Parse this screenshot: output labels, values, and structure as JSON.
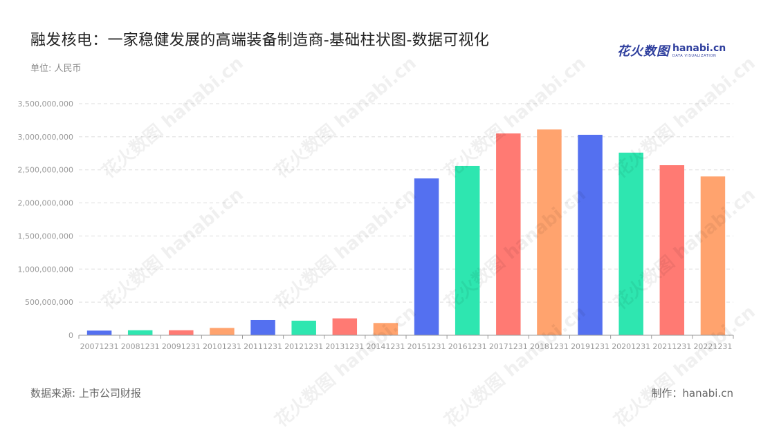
{
  "header": {
    "title": "融发核电：一家稳健发展的高端装备制造商-基础柱状图-数据可视化",
    "unit": "单位: 人民币"
  },
  "logo": {
    "cn": "花火数图",
    "en": "hanabi.cn",
    "sub": "DATA VISUALIZATION"
  },
  "footer": {
    "source": "数据来源: 上市公司财报",
    "credit": "制作：hanabi.cn"
  },
  "watermark": "花火数图 hanabi.cn",
  "chart_data": {
    "type": "bar",
    "title": "",
    "xlabel": "",
    "ylabel": "",
    "categories": [
      "20071231",
      "20081231",
      "20091231",
      "20101231",
      "20111231",
      "20121231",
      "20131231",
      "20141231",
      "20151231",
      "20161231",
      "20171231",
      "20181231",
      "20191231",
      "20201231",
      "20211231",
      "20221231"
    ],
    "values": [
      70000000,
      75000000,
      75000000,
      110000000,
      230000000,
      220000000,
      255000000,
      185000000,
      2370000000,
      2560000000,
      3050000000,
      3110000000,
      3030000000,
      2760000000,
      2570000000,
      2400000000
    ],
    "ylim": [
      0,
      3500000000
    ],
    "yticks": [
      0,
      500000000,
      1000000000,
      1500000000,
      2000000000,
      2500000000,
      3000000000,
      3500000000
    ],
    "ytick_labels": [
      "0",
      "500,000,000",
      "1,000,000,000",
      "1,500,000,000",
      "2,000,000,000",
      "2,500,000,000",
      "3,000,000,000",
      "3,500,000,000"
    ],
    "colors": [
      "#5470f0",
      "#2ee6b0",
      "#ff7a73",
      "#ffa36e"
    ],
    "grid": true,
    "legend": "none"
  }
}
